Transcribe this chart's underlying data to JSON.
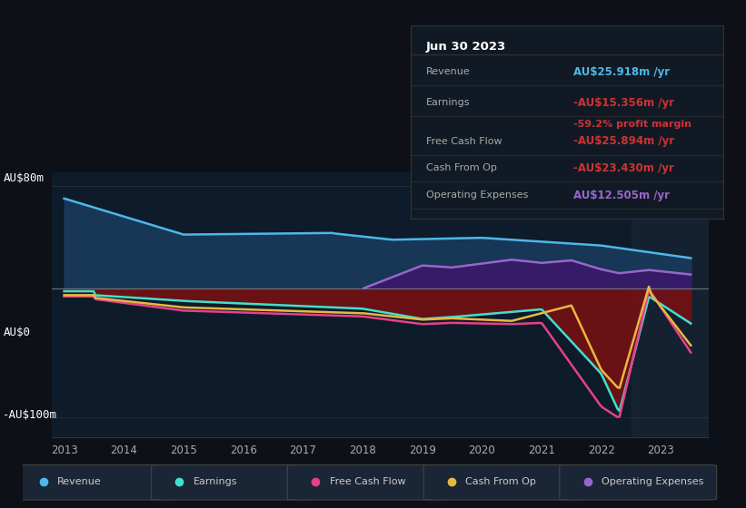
{
  "bg_color": "#0d1117",
  "plot_bg_color": "#0d1b2a",
  "y_label_top": "AU$80m",
  "y_label_mid": "AU$0",
  "y_label_bot": "-AU$100m",
  "revenue_color": "#4db8e8",
  "earnings_color": "#40e0d0",
  "free_cash_flow_color": "#e8408a",
  "cash_from_op_color": "#e8b840",
  "operating_expenses_color": "#9966cc",
  "revenue_fill_color": "#1a3a5c",
  "earnings_fill_color": "#7a1010",
  "operating_expenses_fill_color": "#3a1a6a",
  "legend_items": [
    "Revenue",
    "Earnings",
    "Free Cash Flow",
    "Cash From Op",
    "Operating Expenses"
  ],
  "legend_colors": [
    "#4db8e8",
    "#40e0d0",
    "#e8408a",
    "#e8b840",
    "#9966cc"
  ],
  "info_box": {
    "date": "Jun 30 2023",
    "revenue_val": "AU$25.918m /yr",
    "revenue_color": "#4db8e8",
    "earnings_val": "-AU$15.356m /yr",
    "earnings_color": "#cc3333",
    "margin_val": "-59.2% profit margin",
    "margin_color": "#cc3333",
    "fcf_val": "-AU$25.894m /yr",
    "fcf_color": "#cc3333",
    "cashop_val": "-AU$23.430m /yr",
    "cashop_color": "#cc3333",
    "opex_val": "AU$12.505m /yr",
    "opex_color": "#9966cc"
  }
}
